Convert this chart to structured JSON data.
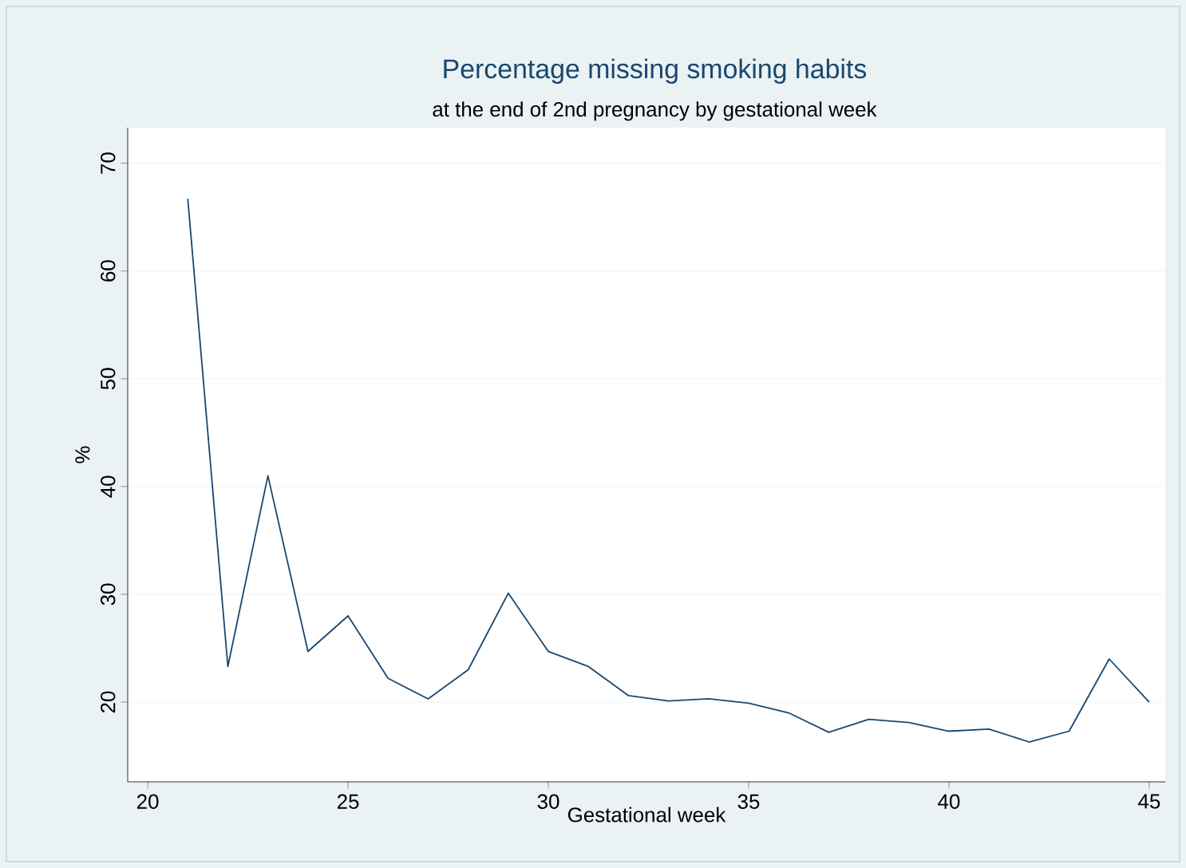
{
  "chart_data": {
    "type": "line",
    "title": "Percentage missing smoking habits",
    "subtitle": "at the end of 2nd pregnancy by gestational week",
    "xlabel": "Gestational week",
    "ylabel": "%",
    "x": [
      21,
      22,
      23,
      24,
      25,
      26,
      27,
      28,
      29,
      30,
      31,
      32,
      33,
      34,
      35,
      36,
      37,
      38,
      39,
      40,
      41,
      42,
      43,
      44,
      45
    ],
    "series": [
      {
        "color": "#1a476f",
        "values": [
          66.7,
          23.3,
          41.0,
          24.7,
          28.0,
          22.2,
          20.3,
          23.0,
          30.1,
          24.7,
          23.3,
          20.6,
          20.1,
          20.3,
          19.9,
          19.0,
          17.2,
          18.4,
          18.1,
          17.3,
          17.5,
          16.3,
          17.3,
          24.0,
          20.0
        ]
      }
    ],
    "xlim": [
      19.5,
      45.4
    ],
    "ylim": [
      12.6,
      73.3
    ],
    "xticks": [
      20,
      25,
      30,
      35,
      40,
      45
    ],
    "yticks": [
      20,
      30,
      40,
      50,
      60,
      70
    ],
    "grid": "y",
    "marker": "none",
    "line_style": "solid"
  }
}
